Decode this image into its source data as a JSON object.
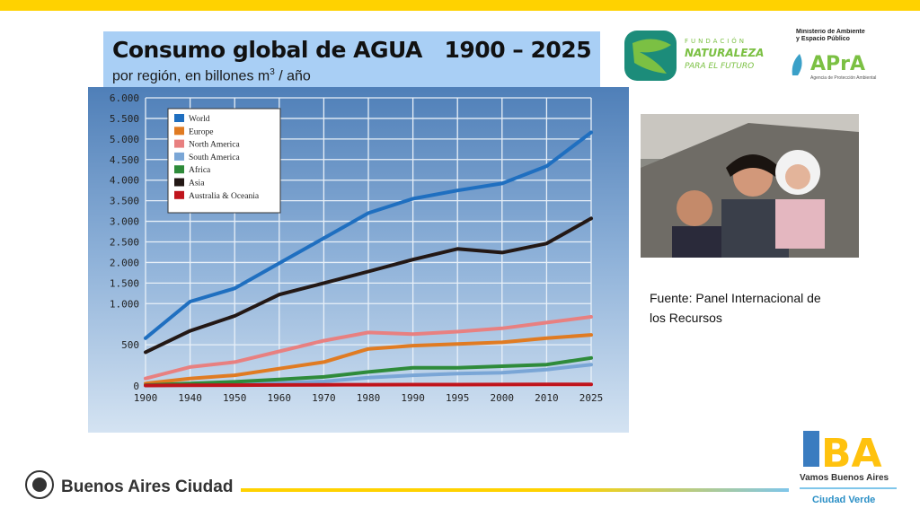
{
  "header": {
    "title": "Consumo global de AGUA   1900 – 2025",
    "subtitle_parts": [
      "por región, en billones m",
      "3",
      " / año"
    ]
  },
  "chart_data": {
    "type": "line",
    "categories": [
      "1900",
      "1940",
      "1950",
      "1960",
      "1970",
      "1980",
      "1990",
      "1995",
      "2000",
      "2010",
      "2025"
    ],
    "ylim": [
      0,
      6000
    ],
    "yticks": [
      0,
      500,
      {
        "value": 1000,
        "label": "1.000"
      },
      {
        "value": 1500,
        "label": "1.500"
      },
      {
        "value": 2000,
        "label": "2.000"
      },
      {
        "value": 2500,
        "label": "2.500"
      },
      {
        "value": 3000,
        "label": "3.000"
      },
      {
        "value": 3500,
        "label": "3.500"
      },
      {
        "value": 4000,
        "label": "4.000"
      },
      {
        "value": 4500,
        "label": "4.500"
      },
      {
        "value": 5000,
        "label": "5.000"
      },
      {
        "value": 5500,
        "label": "5.500"
      },
      {
        "value": 6000,
        "label": "6.000"
      }
    ],
    "grid": true,
    "legend": "top-left",
    "series": [
      {
        "name": "World",
        "color": "#1f6fc0",
        "values": [
          580,
          1050,
          1370,
          1980,
          2590,
          3200,
          3550,
          3750,
          3920,
          4340,
          5160
        ]
      },
      {
        "name": "Europe",
        "color": "#e07b22",
        "values": [
          30,
          90,
          130,
          210,
          290,
          450,
          490,
          510,
          530,
          580,
          620
        ]
      },
      {
        "name": "North America",
        "color": "#e88080",
        "values": [
          90,
          230,
          290,
          420,
          550,
          650,
          630,
          660,
          700,
          770,
          840
        ]
      },
      {
        "name": "South America",
        "color": "#7aa6d6",
        "values": [
          5,
          15,
          25,
          35,
          55,
          100,
          130,
          150,
          160,
          200,
          260
        ]
      },
      {
        "name": "Africa",
        "color": "#2e8b3a",
        "values": [
          10,
          30,
          50,
          80,
          110,
          170,
          220,
          220,
          240,
          260,
          340
        ]
      },
      {
        "name": "Asia",
        "color": "#231815",
        "values": [
          410,
          670,
          850,
          1220,
          1500,
          1780,
          2070,
          2330,
          2240,
          2460,
          3070
        ]
      },
      {
        "name": "Australia & Oceania",
        "color": "#c0141c",
        "values": [
          5,
          8,
          10,
          12,
          14,
          15,
          16,
          16,
          17,
          18,
          20
        ]
      }
    ]
  },
  "source": "Fuente: Panel Internacional de los Recursos",
  "logos": {
    "fundacion": [
      "FUNDACIÓN",
      "NATURALEZA",
      "PARA EL FUTURO"
    ],
    "ministerio": "Ministerio de Ambiente y Espacio Público",
    "apra": "APrA",
    "agencia": "Agencia de Protección Ambiental",
    "ciudad": "Buenos Aires Ciudad",
    "ba": "BA",
    "vamos": "Vamos Buenos Aires",
    "verde": "Ciudad Verde"
  }
}
